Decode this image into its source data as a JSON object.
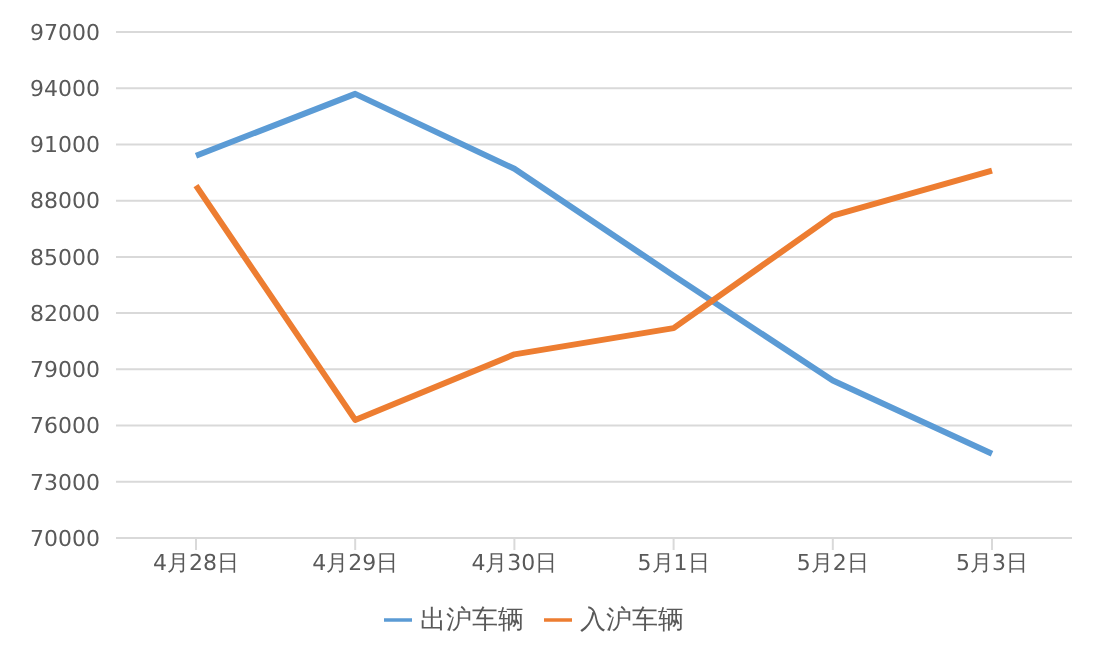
{
  "chart_data": {
    "type": "line",
    "categories": [
      "4月28日",
      "4月29日",
      "4月30日",
      "5月1日",
      "5月2日",
      "5月3日"
    ],
    "series": [
      {
        "name": "出沪车辆",
        "color": "#5b9bd5",
        "values": [
          90400,
          93700,
          89700,
          84000,
          78400,
          74500
        ]
      },
      {
        "name": "入沪车辆",
        "color": "#ed7d31",
        "values": [
          88800,
          76300,
          79800,
          81200,
          87200,
          89600
        ]
      }
    ],
    "ylim": [
      70000,
      97000
    ],
    "yticks": [
      70000,
      73000,
      76000,
      79000,
      82000,
      85000,
      88000,
      91000,
      94000,
      97000
    ],
    "grid": "y",
    "legend": "bottom",
    "marker": "none",
    "line_style": "solid"
  }
}
